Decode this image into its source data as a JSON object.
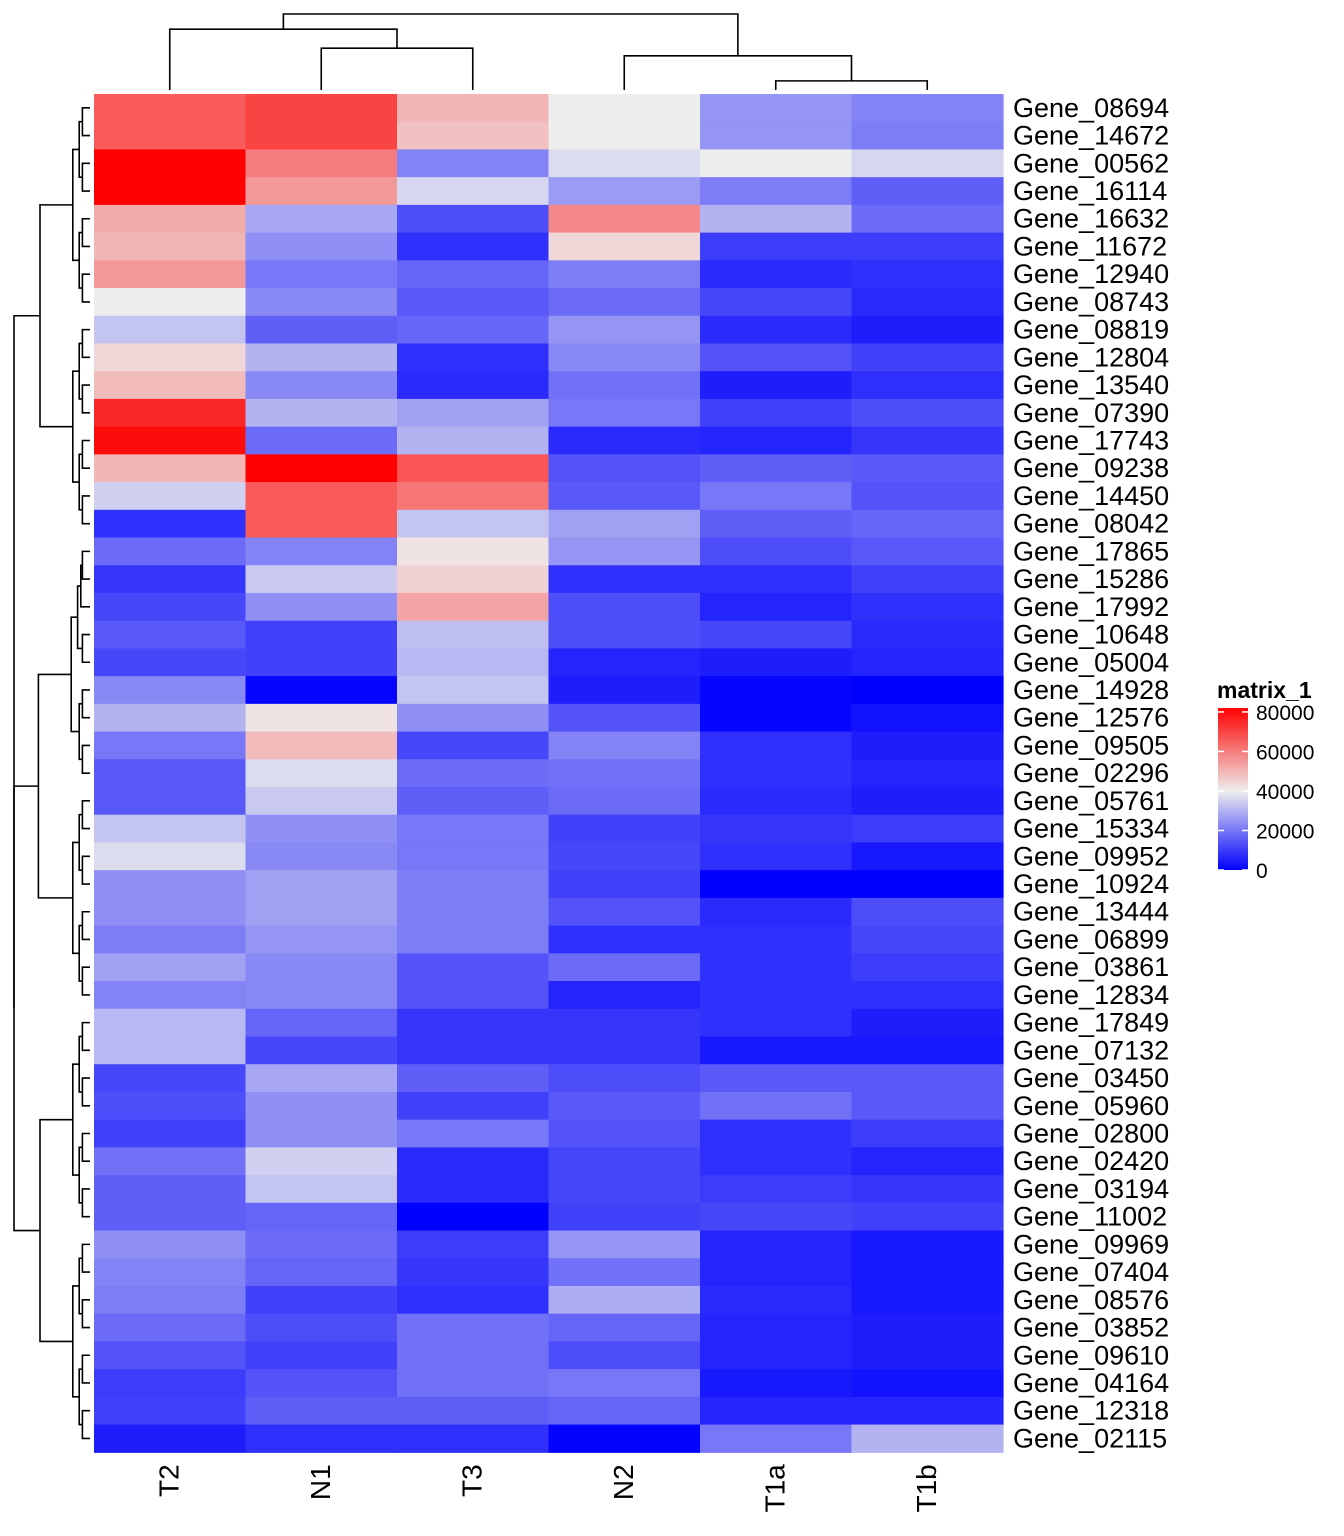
{
  "chart_data": {
    "type": "heatmap",
    "title": "",
    "columns": [
      "T2",
      "N1",
      "T3",
      "N2",
      "T1a",
      "T1b"
    ],
    "rows": [
      "Gene_08694",
      "Gene_14672",
      "Gene_00562",
      "Gene_16114",
      "Gene_16632",
      "Gene_11672",
      "Gene_12940",
      "Gene_08743",
      "Gene_08819",
      "Gene_12804",
      "Gene_13540",
      "Gene_07390",
      "Gene_17743",
      "Gene_09238",
      "Gene_14450",
      "Gene_08042",
      "Gene_17865",
      "Gene_15286",
      "Gene_17992",
      "Gene_10648",
      "Gene_05004",
      "Gene_14928",
      "Gene_12576",
      "Gene_09505",
      "Gene_02296",
      "Gene_05761",
      "Gene_15334",
      "Gene_09952",
      "Gene_10924",
      "Gene_13444",
      "Gene_06899",
      "Gene_03861",
      "Gene_12834",
      "Gene_17849",
      "Gene_07132",
      "Gene_03450",
      "Gene_05960",
      "Gene_02800",
      "Gene_02420",
      "Gene_03194",
      "Gene_11002",
      "Gene_09969",
      "Gene_07404",
      "Gene_08576",
      "Gene_03852",
      "Gene_09610",
      "Gene_04164",
      "Gene_12318",
      "Gene_02115"
    ],
    "values": [
      [
        66000,
        70000,
        50000,
        40000,
        25000,
        22000
      ],
      [
        66000,
        70000,
        48000,
        40000,
        25000,
        21000
      ],
      [
        82000,
        60000,
        22000,
        37000,
        40000,
        36000
      ],
      [
        82000,
        55000,
        36000,
        26000,
        21000,
        16000
      ],
      [
        52000,
        28000,
        13000,
        58000,
        30000,
        18000
      ],
      [
        50000,
        24000,
        8000,
        44000,
        10000,
        10000
      ],
      [
        55000,
        20000,
        17000,
        21000,
        7000,
        8000
      ],
      [
        40000,
        23000,
        15000,
        18000,
        12000,
        7000
      ],
      [
        33000,
        16000,
        17000,
        25000,
        7000,
        5000
      ],
      [
        44000,
        30000,
        8000,
        23000,
        14000,
        11000
      ],
      [
        49000,
        23000,
        7000,
        19000,
        5000,
        8000
      ],
      [
        75000,
        30000,
        27000,
        20000,
        11000,
        13000
      ],
      [
        80000,
        18000,
        30000,
        7000,
        6000,
        9000
      ],
      [
        50000,
        82000,
        67000,
        14000,
        16000,
        15000
      ],
      [
        35000,
        66000,
        61000,
        15000,
        20000,
        14000
      ],
      [
        8000,
        66000,
        33000,
        27000,
        16000,
        17000
      ],
      [
        18000,
        22000,
        42000,
        25000,
        13000,
        15000
      ],
      [
        9000,
        34000,
        45000,
        8000,
        8000,
        11000
      ],
      [
        12000,
        24000,
        53000,
        13000,
        6000,
        8000
      ],
      [
        15000,
        11000,
        32000,
        13000,
        12000,
        7000
      ],
      [
        12000,
        11000,
        31000,
        6000,
        5000,
        6000
      ],
      [
        23000,
        1000,
        33000,
        5000,
        1000,
        0
      ],
      [
        30000,
        42000,
        24000,
        14000,
        1000,
        3000
      ],
      [
        20000,
        49000,
        12000,
        22000,
        8000,
        5000
      ],
      [
        15000,
        37000,
        18000,
        19000,
        8000,
        6000
      ],
      [
        15000,
        34000,
        16000,
        18000,
        7000,
        5000
      ],
      [
        33000,
        24000,
        20000,
        11000,
        9000,
        10000
      ],
      [
        37000,
        23000,
        20000,
        12000,
        8000,
        4000
      ],
      [
        24000,
        27000,
        21000,
        11000,
        0,
        0
      ],
      [
        24000,
        27000,
        21000,
        14000,
        7000,
        13000
      ],
      [
        21000,
        25000,
        21000,
        8000,
        8000,
        12000
      ],
      [
        27000,
        23000,
        14000,
        18000,
        8000,
        10000
      ],
      [
        22000,
        23000,
        14000,
        6000,
        8000,
        8000
      ],
      [
        31000,
        17000,
        9000,
        9000,
        8000,
        5000
      ],
      [
        31000,
        12000,
        9000,
        9000,
        4000,
        4000
      ],
      [
        12000,
        28000,
        16000,
        13000,
        15000,
        15000
      ],
      [
        13000,
        24000,
        11000,
        15000,
        19000,
        15000
      ],
      [
        11000,
        24000,
        20000,
        14000,
        8000,
        10000
      ],
      [
        19000,
        35000,
        7000,
        12000,
        8000,
        6000
      ],
      [
        16000,
        33000,
        7000,
        12000,
        10000,
        9000
      ],
      [
        16000,
        17000,
        0,
        11000,
        12000,
        11000
      ],
      [
        24000,
        18000,
        10000,
        25000,
        6000,
        4000
      ],
      [
        22000,
        17000,
        9000,
        19000,
        6000,
        4000
      ],
      [
        21000,
        11000,
        8000,
        29000,
        7000,
        4000
      ],
      [
        18000,
        13000,
        19000,
        17000,
        6000,
        5000
      ],
      [
        14000,
        11000,
        19000,
        13000,
        6000,
        5000
      ],
      [
        10000,
        14000,
        19000,
        20000,
        4000,
        3000
      ],
      [
        11000,
        16000,
        16000,
        17000,
        6000,
        6000
      ],
      [
        5000,
        8000,
        8000,
        500,
        20000,
        30000
      ]
    ],
    "color_scale": {
      "min": 0,
      "mid": 40000,
      "max": 82000,
      "low_color": "#0000FF",
      "mid_color": "#EEEEEE",
      "high_color": "#FF0000"
    },
    "legend": {
      "title": "matrix_1",
      "ticks": [
        "80000",
        "60000",
        "40000",
        "20000",
        "0"
      ],
      "tick_values": [
        80000,
        60000,
        40000,
        20000,
        0
      ],
      "placement": "right"
    },
    "column_dendrogram": {
      "merges": [
        [
          "T1a",
          "T1b"
        ],
        [
          "N2",
          [
            "T1a",
            "T1b"
          ]
        ],
        [
          "N1",
          "T3"
        ],
        [
          "T2",
          [
            "N1",
            "T3"
          ]
        ],
        [
          [
            "T2",
            [
              "N1",
              "T3"
            ]
          ],
          [
            "N2",
            [
              "T1a",
              "T1b"
            ]
          ]
        ]
      ],
      "heights": [
        0.12,
        0.45,
        0.55,
        0.8,
        1.0
      ]
    }
  }
}
